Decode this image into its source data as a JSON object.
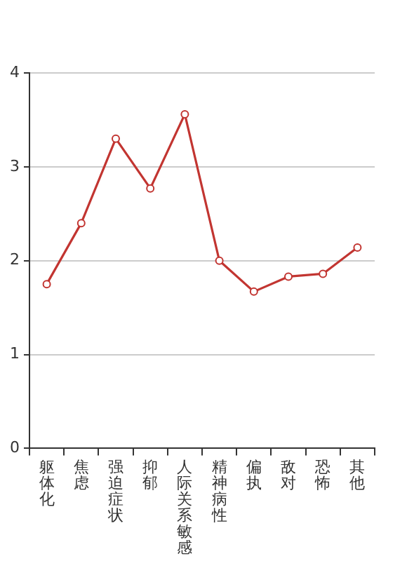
{
  "chart_data": {
    "type": "line",
    "categories": [
      "躯体化",
      "焦虑",
      "强迫症状",
      "抑郁",
      "人际关系敏感",
      "精神病性",
      "偏执",
      "敌对",
      "恐怖",
      "其他"
    ],
    "series": [
      {
        "color": "#c23531",
        "values": [
          1.75,
          2.4,
          3.3,
          2.77,
          3.56,
          2.0,
          1.67,
          1.83,
          1.86,
          2.14
        ]
      }
    ],
    "ylim": [
      0,
      4
    ],
    "yticks": [
      0,
      1,
      2,
      3,
      4
    ],
    "grid": "y",
    "legend": false,
    "marker": "circle",
    "line_style": "solid"
  }
}
